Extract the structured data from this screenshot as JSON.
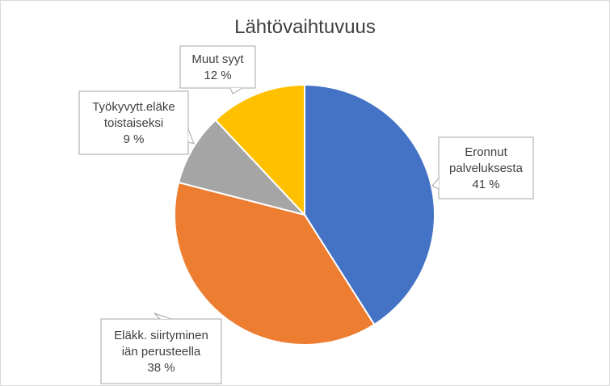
{
  "chart_data": {
    "type": "pie",
    "title": "Lähtövaihtuvuus",
    "slices": [
      {
        "label_lines": [
          "Eronnut",
          "palveluksesta"
        ],
        "value": 41,
        "value_label": "41 %",
        "color": "#4472c4"
      },
      {
        "label_lines": [
          "Eläkk. siirtyminen",
          "iän perusteella"
        ],
        "value": 38,
        "value_label": "38 %",
        "color": "#ed7d31"
      },
      {
        "label_lines": [
          "Työkyvytt.eläke",
          "toistaiseksi"
        ],
        "value": 9,
        "value_label": "9 %",
        "color": "#a5a5a5"
      },
      {
        "label_lines": [
          "Muut syyt"
        ],
        "value": 12,
        "value_label": "12 %",
        "color": "#ffc000"
      }
    ],
    "start_angle_deg": 0,
    "direction": "clockwise",
    "legend": "none",
    "data_labels": "callouts"
  }
}
